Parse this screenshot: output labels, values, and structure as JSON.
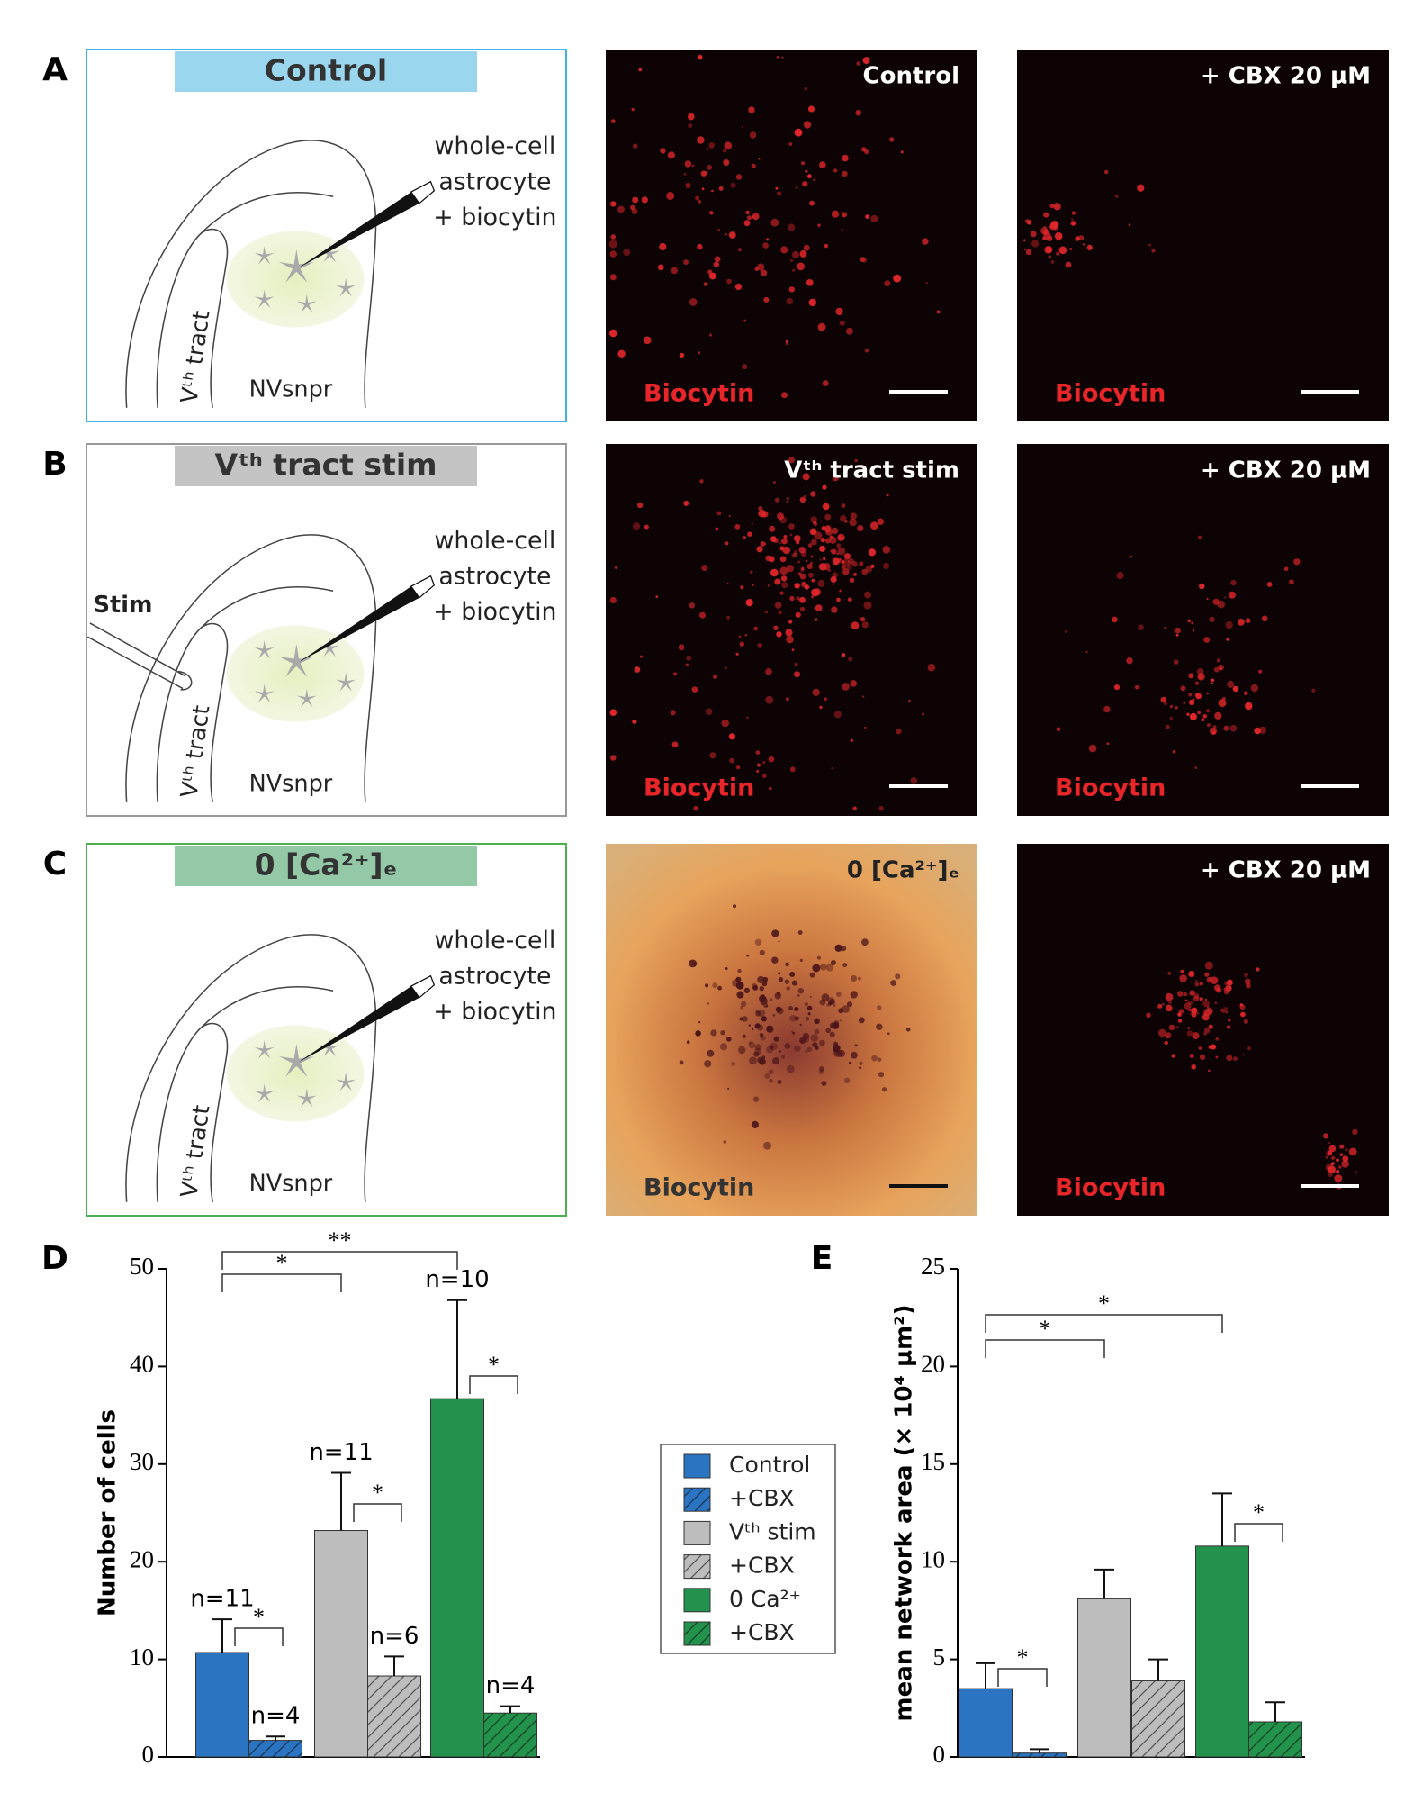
{
  "panels": [
    {
      "letter": "A",
      "title": "Control",
      "schematic": {
        "lines": [
          "whole-cell",
          "astrocyte",
          "+ biocytin"
        ],
        "tract": "Vᵗʰ tract",
        "region": "NVsnpr"
      },
      "images": [
        {
          "label": "Control",
          "stain": "Biocytin"
        },
        {
          "label": "+ CBX 20 µM",
          "stain": "Biocytin"
        }
      ]
    },
    {
      "letter": "B",
      "title": "Vᵗʰ tract stim",
      "schematic": {
        "lines": [
          "whole-cell",
          "astrocyte",
          "+ biocytin"
        ],
        "tract": "Vᵗʰ tract",
        "region": "NVsnpr",
        "stim": "Stim"
      },
      "images": [
        {
          "label": "Vᵗʰ tract stim",
          "stain": "Biocytin"
        },
        {
          "label": "+ CBX 20 µM",
          "stain": "Biocytin"
        }
      ]
    },
    {
      "letter": "C",
      "title": "0 [Ca²⁺]ₑ",
      "schematic": {
        "lines": [
          "whole-cell",
          "astrocyte",
          "+ biocytin"
        ],
        "tract": "Vᵗʰ tract",
        "region": "NVsnpr"
      },
      "images": [
        {
          "label": "0 [Ca²⁺]ₑ",
          "stain": "Biocytin"
        },
        {
          "label": "+ CBX 20 µM",
          "stain": "Biocytin"
        }
      ]
    }
  ],
  "chart_data": [
    {
      "type": "bar",
      "letter": "D",
      "ylabel": "Number of cells",
      "ylim": [
        0,
        50
      ],
      "yticks": [
        0,
        10,
        20,
        30,
        40,
        50
      ],
      "series": [
        {
          "name": "Control",
          "color": "#2b74c1",
          "hatch": false,
          "values": [
            10.7
          ],
          "errors": [
            3.4
          ],
          "n": "n=11"
        },
        {
          "name": "+CBX",
          "color": "#2b74c1",
          "hatch": true,
          "values": [
            1.7
          ],
          "errors": [
            0.4
          ],
          "n": "n=4"
        },
        {
          "name": "Vᵗʰ stim",
          "color": "#bdbdbd",
          "hatch": false,
          "values": [
            23.2
          ],
          "errors": [
            5.9
          ],
          "n": "n=11"
        },
        {
          "name": " +CBX",
          "color": "#bdbdbd",
          "hatch": true,
          "values": [
            8.3
          ],
          "errors": [
            2.0
          ],
          "n": "n=6"
        },
        {
          "name": "0 Ca²⁺",
          "color": "#23924c",
          "hatch": false,
          "values": [
            36.7
          ],
          "errors": [
            10.1
          ],
          "n": "n=10"
        },
        {
          "name": " +CBX",
          "color": "#23924c",
          "hatch": true,
          "values": [
            4.5
          ],
          "errors": [
            0.7
          ],
          "n": "n=4"
        }
      ],
      "annotations": [
        "**",
        "*",
        "*",
        "*",
        "*"
      ]
    },
    {
      "type": "bar",
      "letter": "E",
      "ylabel": "mean network area (× 10⁴ µm²)",
      "ylim": [
        0,
        25
      ],
      "yticks": [
        0,
        5,
        10,
        15,
        20,
        25
      ],
      "series": [
        {
          "color": "#2b74c1",
          "hatch": false,
          "values": [
            3.5
          ],
          "errors": [
            1.3
          ]
        },
        {
          "color": "#2b74c1",
          "hatch": true,
          "values": [
            0.2
          ],
          "errors": [
            0.2
          ]
        },
        {
          "color": "#bdbdbd",
          "hatch": false,
          "values": [
            8.1
          ],
          "errors": [
            1.5
          ]
        },
        {
          "color": "#bdbdbd",
          "hatch": true,
          "values": [
            3.9
          ],
          "errors": [
            1.1
          ]
        },
        {
          "color": "#23924c",
          "hatch": false,
          "values": [
            10.8
          ],
          "errors": [
            2.7
          ]
        },
        {
          "color": "#23924c",
          "hatch": true,
          "values": [
            1.8
          ],
          "errors": [
            1.0
          ]
        }
      ],
      "annotations": [
        "*",
        "*",
        "*",
        "*"
      ]
    }
  ]
}
